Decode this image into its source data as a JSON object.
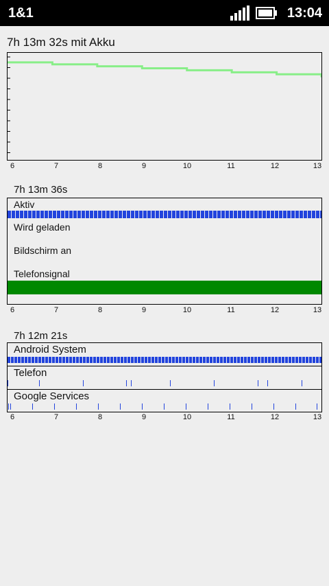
{
  "status_bar": {
    "carrier": "1&1",
    "time": "13:04",
    "icons": [
      "signal-icon",
      "battery-icon"
    ]
  },
  "battery_section": {
    "title": "7h 13m 32s mit Akku",
    "line_color": "#88ee88"
  },
  "details_section": {
    "title": "7h 13m 36s",
    "rows": [
      {
        "label": "Aktiv",
        "bar": "dashed-blue"
      },
      {
        "label": "Wird geladen",
        "bar": "none"
      },
      {
        "label": "Bildschirm an",
        "bar": "none"
      },
      {
        "label": "Telefonsignal",
        "bar": "solid-green"
      }
    ],
    "active_color": "#2244dd",
    "signal_color": "#008800"
  },
  "apps_section": {
    "title": "7h 12m 21s",
    "apps": [
      {
        "label": "Android System"
      },
      {
        "label": "Telefon"
      },
      {
        "label": "Google Services"
      }
    ]
  },
  "x_ticks": [
    "6",
    "7",
    "8",
    "9",
    "10",
    "11",
    "12",
    "13"
  ],
  "chart_data": {
    "type": "line",
    "x": [
      "6",
      "7",
      "8",
      "9",
      "10",
      "11",
      "12",
      "13"
    ],
    "series": [
      {
        "values": [
          98,
          96,
          94,
          92,
          90,
          88,
          86,
          83
        ]
      }
    ],
    "ylim": [
      0,
      100
    ],
    "grid": false
  }
}
